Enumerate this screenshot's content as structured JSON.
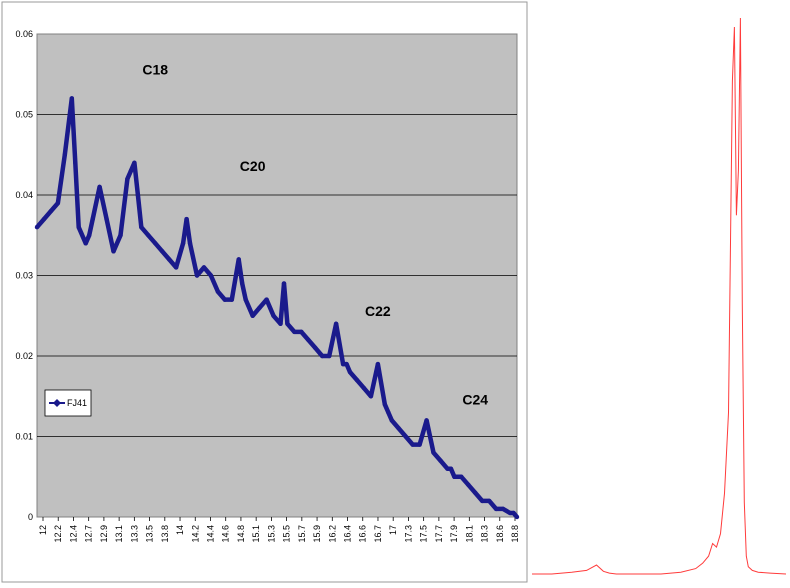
{
  "chart_data": [
    {
      "type": "line",
      "title": "",
      "xlabel": "",
      "ylabel": "",
      "ylim": [
        0,
        0.06
      ],
      "yticks": [
        0,
        0.01,
        0.02,
        0.03,
        0.04,
        0.05,
        0.06
      ],
      "ytick_labels": [
        "0",
        "0.01",
        "0.02",
        "0.03",
        "0.04",
        "0.05",
        "0.06"
      ],
      "xlim": [
        12.0,
        18.9
      ],
      "xtick_labels": [
        "12",
        "12.2",
        "12.4",
        "12.7",
        "12.9",
        "13.1",
        "13.3",
        "13.5",
        "13.8",
        "14",
        "14.2",
        "14.4",
        "14.6",
        "14.8",
        "15.1",
        "15.3",
        "15.5",
        "15.7",
        "15.9",
        "16.2",
        "16.4",
        "16.6",
        "16.7",
        "17",
        "17.3",
        "17.5",
        "17.7",
        "17.9",
        "18.1",
        "18.3",
        "18.6",
        "18.8"
      ],
      "grid": true,
      "legend_position": "left",
      "series": [
        {
          "name": "FJ41",
          "color": "#1a1a8c",
          "x": [
            12.0,
            12.1,
            12.2,
            12.3,
            12.4,
            12.5,
            12.55,
            12.6,
            12.7,
            12.75,
            12.8,
            12.9,
            13.0,
            13.1,
            13.2,
            13.3,
            13.35,
            13.4,
            13.45,
            13.5,
            13.6,
            13.7,
            13.8,
            13.9,
            14.0,
            14.1,
            14.15,
            14.2,
            14.3,
            14.4,
            14.5,
            14.6,
            14.7,
            14.8,
            14.9,
            14.95,
            15.0,
            15.1,
            15.2,
            15.3,
            15.4,
            15.5,
            15.55,
            15.6,
            15.7,
            15.8,
            15.9,
            16.0,
            16.1,
            16.2,
            16.3,
            16.4,
            16.45,
            16.5,
            16.6,
            16.7,
            16.8,
            16.9,
            17.0,
            17.05,
            17.1,
            17.2,
            17.3,
            17.4,
            17.5,
            17.6,
            17.7,
            17.8,
            17.9,
            17.95,
            18.0,
            18.1,
            18.2,
            18.3,
            18.4,
            18.5,
            18.6,
            18.7,
            18.8,
            18.85,
            18.9
          ],
          "values": [
            0.036,
            0.037,
            0.038,
            0.039,
            0.045,
            0.052,
            0.044,
            0.036,
            0.034,
            0.035,
            0.037,
            0.041,
            0.037,
            0.033,
            0.035,
            0.042,
            0.043,
            0.044,
            0.04,
            0.036,
            0.035,
            0.034,
            0.033,
            0.032,
            0.031,
            0.034,
            0.037,
            0.034,
            0.03,
            0.031,
            0.03,
            0.028,
            0.027,
            0.027,
            0.032,
            0.029,
            0.027,
            0.025,
            0.026,
            0.027,
            0.025,
            0.024,
            0.029,
            0.024,
            0.023,
            0.023,
            0.022,
            0.021,
            0.02,
            0.02,
            0.024,
            0.019,
            0.019,
            0.018,
            0.017,
            0.016,
            0.015,
            0.019,
            0.014,
            0.013,
            0.012,
            0.011,
            0.01,
            0.009,
            0.009,
            0.012,
            0.008,
            0.007,
            0.006,
            0.006,
            0.005,
            0.005,
            0.004,
            0.003,
            0.002,
            0.002,
            0.001,
            0.001,
            0.0005,
            0.0005,
            0.0
          ]
        }
      ],
      "annotations": [
        {
          "text": "C18",
          "x": 13.7,
          "y": 0.055
        },
        {
          "text": "C20",
          "x": 15.1,
          "y": 0.043
        },
        {
          "text": "C22",
          "x": 16.9,
          "y": 0.025
        },
        {
          "text": "C24",
          "x": 18.3,
          "y": 0.014
        }
      ]
    },
    {
      "type": "line",
      "title": "",
      "xlabel": "",
      "ylabel": "",
      "grid": false,
      "series": [
        {
          "name": "",
          "color": "#ff3b3b",
          "x": [
            0,
            20,
            40,
            55,
            65,
            72,
            78,
            85,
            100,
            130,
            150,
            165,
            172,
            178,
            182,
            186,
            190,
            194,
            198,
            202,
            204,
            206,
            208,
            210,
            212,
            214,
            216,
            218,
            222,
            228,
            240,
            256
          ],
          "values": [
            0.0,
            0.0,
            0.002,
            0.004,
            0.01,
            0.003,
            0.001,
            0.0,
            0.0,
            0.0,
            0.002,
            0.006,
            0.012,
            0.02,
            0.034,
            0.03,
            0.045,
            0.09,
            0.18,
            0.55,
            0.61,
            0.4,
            0.45,
            0.62,
            0.3,
            0.08,
            0.02,
            0.008,
            0.004,
            0.002,
            0.001,
            0.0
          ]
        }
      ]
    }
  ]
}
